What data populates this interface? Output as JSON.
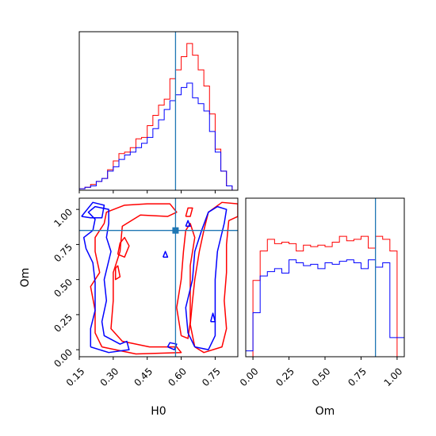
{
  "chart_data": {
    "type": "corner",
    "colors": {
      "red": "#ff0000",
      "blue": "#0000ff",
      "truth": "#1f77b4"
    },
    "parameters": [
      "H0",
      "Om"
    ],
    "truths": {
      "H0": 0.575,
      "Om": 0.85
    },
    "panels": [
      {
        "id": "h0-hist",
        "type": "histogram",
        "xlim": [
          0.15,
          0.85
        ],
        "ylim": [
          0,
          1.08
        ],
        "x_ticks": [
          0.15,
          0.3,
          0.45,
          0.6,
          0.75
        ],
        "bin_edges": [
          0.15,
          0.175,
          0.2,
          0.225,
          0.25,
          0.275,
          0.3,
          0.325,
          0.35,
          0.375,
          0.4,
          0.425,
          0.45,
          0.475,
          0.5,
          0.525,
          0.55,
          0.575,
          0.6,
          0.625,
          0.65,
          0.675,
          0.7,
          0.725,
          0.75,
          0.775,
          0.8,
          0.825,
          0.85
        ],
        "series": [
          {
            "color": "red",
            "values": [
              0.01,
              0.02,
              0.04,
              0.06,
              0.08,
              0.14,
              0.2,
              0.25,
              0.26,
              0.29,
              0.35,
              0.36,
              0.44,
              0.51,
              0.58,
              0.62,
              0.76,
              0.82,
              0.91,
              1.0,
              0.92,
              0.82,
              0.71,
              0.52,
              0.28,
              0.13,
              0.03,
              0.0
            ]
          },
          {
            "color": "blue",
            "values": [
              0.01,
              0.02,
              0.03,
              0.06,
              0.08,
              0.13,
              0.16,
              0.21,
              0.24,
              0.26,
              0.29,
              0.32,
              0.36,
              0.42,
              0.48,
              0.55,
              0.61,
              0.65,
              0.7,
              0.73,
              0.63,
              0.59,
              0.54,
              0.4,
              0.26,
              0.13,
              0.03,
              0.0
            ]
          }
        ]
      },
      {
        "id": "om-hist",
        "type": "histogram",
        "xlim": [
          -0.05,
          1.05
        ],
        "ylim": [
          0,
          1.08
        ],
        "x_ticks": [
          0.0,
          0.25,
          0.5,
          0.75,
          1.0
        ],
        "x_tick_labels": [
          "0.00",
          "0.25",
          "0.50",
          "0.75",
          "1.00"
        ],
        "xlabel": "Om",
        "series": [
          {
            "color": "red",
            "bin_edges": [
              0.0,
              0.05,
              0.1,
              0.15,
              0.2,
              0.25,
              0.3,
              0.35,
              0.4,
              0.45,
              0.5,
              0.55,
              0.6,
              0.65,
              0.7,
              0.75,
              0.8,
              0.85,
              0.9,
              0.95,
              1.0
            ],
            "values": [
              0.52,
              0.72,
              0.8,
              0.77,
              0.78,
              0.77,
              0.72,
              0.76,
              0.75,
              0.76,
              0.75,
              0.78,
              0.82,
              0.79,
              0.8,
              0.82,
              0.74,
              0.82,
              0.8,
              0.72
            ]
          },
          {
            "color": "blue",
            "bin_edges": [
              -0.05,
              0.0,
              0.05,
              0.1,
              0.15,
              0.2,
              0.25,
              0.3,
              0.35,
              0.4,
              0.45,
              0.5,
              0.55,
              0.6,
              0.65,
              0.7,
              0.75,
              0.8,
              0.85,
              0.9,
              0.95,
              1.0,
              1.05
            ],
            "values": [
              0.04,
              0.3,
              0.55,
              0.58,
              0.6,
              0.57,
              0.66,
              0.64,
              0.62,
              0.63,
              0.6,
              0.64,
              0.63,
              0.65,
              0.66,
              0.64,
              0.6,
              0.66,
              0.61,
              0.64,
              0.13,
              0.13
            ]
          }
        ]
      },
      {
        "id": "h0-om-contour",
        "type": "contour",
        "xlim": [
          0.15,
          0.85
        ],
        "ylim": [
          -0.05,
          1.08
        ],
        "x_ticks": [
          0.15,
          0.3,
          0.45,
          0.6,
          0.75
        ],
        "x_tick_labels": [
          "0.15",
          "0.30",
          "0.45",
          "0.60",
          "0.75"
        ],
        "y_ticks": [
          0.0,
          0.25,
          0.5,
          0.75,
          1.0
        ],
        "y_tick_labels": [
          "0.00",
          "0.25",
          "0.50",
          "0.75",
          "1.00"
        ],
        "xlabel": "H0",
        "ylabel": "Om",
        "series": [
          {
            "color": "red",
            "contours": [
              [
                [
                  0.25,
                  0.02
                ],
                [
                  0.22,
                  0.12
                ],
                [
                  0.22,
                  0.28
                ],
                [
                  0.2,
                  0.45
                ],
                [
                  0.24,
                  0.55
                ],
                [
                  0.22,
                  0.7
                ],
                [
                  0.22,
                  0.8
                ],
                [
                  0.26,
                  0.9
                ],
                [
                  0.27,
                  0.98
                ],
                [
                  0.35,
                  1.03
                ],
                [
                  0.45,
                  1.04
                ],
                [
                  0.55,
                  1.04
                ],
                [
                  0.58,
                  0.98
                ],
                [
                  0.54,
                  0.95
                ],
                [
                  0.42,
                  0.96
                ],
                [
                  0.34,
                  0.88
                ],
                [
                  0.33,
                  0.7
                ],
                [
                  0.3,
                  0.55
                ],
                [
                  0.3,
                  0.35
                ],
                [
                  0.29,
                  0.15
                ],
                [
                  0.34,
                  0.06
                ],
                [
                  0.46,
                  0.02
                ],
                [
                  0.58,
                  0.02
                ],
                [
                  0.6,
                  -0.02
                ],
                [
                  0.4,
                  -0.03
                ],
                [
                  0.25,
                  0.02
                ]
              ],
              [
                [
                  0.66,
                  0.02
                ],
                [
                  0.64,
                  0.18
                ],
                [
                  0.65,
                  0.35
                ],
                [
                  0.66,
                  0.5
                ],
                [
                  0.68,
                  0.7
                ],
                [
                  0.7,
                  0.85
                ],
                [
                  0.72,
                  0.98
                ],
                [
                  0.78,
                  1.05
                ],
                [
                  0.85,
                  1.04
                ],
                [
                  0.85,
                  0.95
                ],
                [
                  0.81,
                  0.92
                ],
                [
                  0.8,
                  0.75
                ],
                [
                  0.8,
                  0.55
                ],
                [
                  0.79,
                  0.35
                ],
                [
                  0.8,
                  0.15
                ],
                [
                  0.78,
                  0.02
                ],
                [
                  0.7,
                  -0.02
                ],
                [
                  0.66,
                  0.02
                ]
              ],
              [
                [
                  0.6,
                  0.1
                ],
                [
                  0.58,
                  0.3
                ],
                [
                  0.6,
                  0.5
                ],
                [
                  0.61,
                  0.7
                ],
                [
                  0.62,
                  0.85
                ],
                [
                  0.64,
                  0.9
                ],
                [
                  0.66,
                  0.8
                ],
                [
                  0.64,
                  0.6
                ],
                [
                  0.64,
                  0.4
                ],
                [
                  0.64,
                  0.2
                ],
                [
                  0.63,
                  0.08
                ],
                [
                  0.6,
                  0.1
                ]
              ],
              [
                [
                  0.32,
                  0.68
                ],
                [
                  0.33,
                  0.76
                ],
                [
                  0.35,
                  0.8
                ],
                [
                  0.37,
                  0.74
                ],
                [
                  0.35,
                  0.66
                ],
                [
                  0.32,
                  0.68
                ]
              ],
              [
                [
                  0.32,
                  0.6
                ],
                [
                  0.33,
                  0.52
                ],
                [
                  0.31,
                  0.5
                ],
                [
                  0.31,
                  0.58
                ],
                [
                  0.32,
                  0.6
                ]
              ],
              [
                [
                  0.62,
                  0.95
                ],
                [
                  0.63,
                  1.01
                ],
                [
                  0.65,
                  1.01
                ],
                [
                  0.64,
                  0.95
                ],
                [
                  0.62,
                  0.95
                ]
              ]
            ]
          },
          {
            "color": "blue",
            "contours": [
              [
                [
                  0.2,
                  0.02
                ],
                [
                  0.2,
                  0.15
                ],
                [
                  0.22,
                  0.28
                ],
                [
                  0.22,
                  0.48
                ],
                [
                  0.21,
                  0.62
                ],
                [
                  0.18,
                  0.72
                ],
                [
                  0.17,
                  0.8
                ],
                [
                  0.21,
                  0.85
                ],
                [
                  0.22,
                  0.93
                ],
                [
                  0.19,
                  0.98
                ],
                [
                  0.22,
                  1.02
                ],
                [
                  0.28,
                  1.0
                ],
                [
                  0.28,
                  0.9
                ],
                [
                  0.27,
                  0.8
                ],
                [
                  0.29,
                  0.7
                ],
                [
                  0.26,
                  0.5
                ],
                [
                  0.27,
                  0.35
                ],
                [
                  0.25,
                  0.2
                ],
                [
                  0.26,
                  0.1
                ],
                [
                  0.33,
                  0.04
                ],
                [
                  0.36,
                  0.06
                ],
                [
                  0.37,
                  0.0
                ],
                [
                  0.28,
                  -0.02
                ],
                [
                  0.2,
                  0.02
                ]
              ],
              [
                [
                  0.66,
                  0.02
                ],
                [
                  0.63,
                  0.12
                ],
                [
                  0.62,
                  0.3
                ],
                [
                  0.65,
                  0.5
                ],
                [
                  0.66,
                  0.7
                ],
                [
                  0.69,
                  0.85
                ],
                [
                  0.72,
                  0.98
                ],
                [
                  0.76,
                  1.02
                ],
                [
                  0.8,
                  1.0
                ],
                [
                  0.79,
                  0.9
                ],
                [
                  0.76,
                  0.7
                ],
                [
                  0.75,
                  0.5
                ],
                [
                  0.75,
                  0.3
                ],
                [
                  0.75,
                  0.1
                ],
                [
                  0.72,
                  0.0
                ],
                [
                  0.66,
                  0.02
                ]
              ],
              [
                [
                  0.16,
                  0.95
                ],
                [
                  0.21,
                  1.05
                ],
                [
                  0.26,
                  1.03
                ],
                [
                  0.25,
                  0.94
                ],
                [
                  0.2,
                  0.94
                ],
                [
                  0.16,
                  0.95
                ]
              ],
              [
                [
                  0.54,
                  0.02
                ],
                [
                  0.55,
                  0.05
                ],
                [
                  0.58,
                  0.04
                ],
                [
                  0.57,
                  0.0
                ],
                [
                  0.54,
                  0.02
                ]
              ],
              [
                [
                  0.52,
                  0.66
                ],
                [
                  0.53,
                  0.7
                ],
                [
                  0.54,
                  0.66
                ],
                [
                  0.52,
                  0.66
                ]
              ],
              [
                [
                  0.62,
                  0.88
                ],
                [
                  0.63,
                  0.92
                ],
                [
                  0.64,
                  0.88
                ],
                [
                  0.62,
                  0.88
                ]
              ],
              [
                [
                  0.73,
                  0.2
                ],
                [
                  0.74,
                  0.26
                ],
                [
                  0.75,
                  0.2
                ],
                [
                  0.73,
                  0.2
                ]
              ]
            ]
          }
        ]
      }
    ]
  }
}
